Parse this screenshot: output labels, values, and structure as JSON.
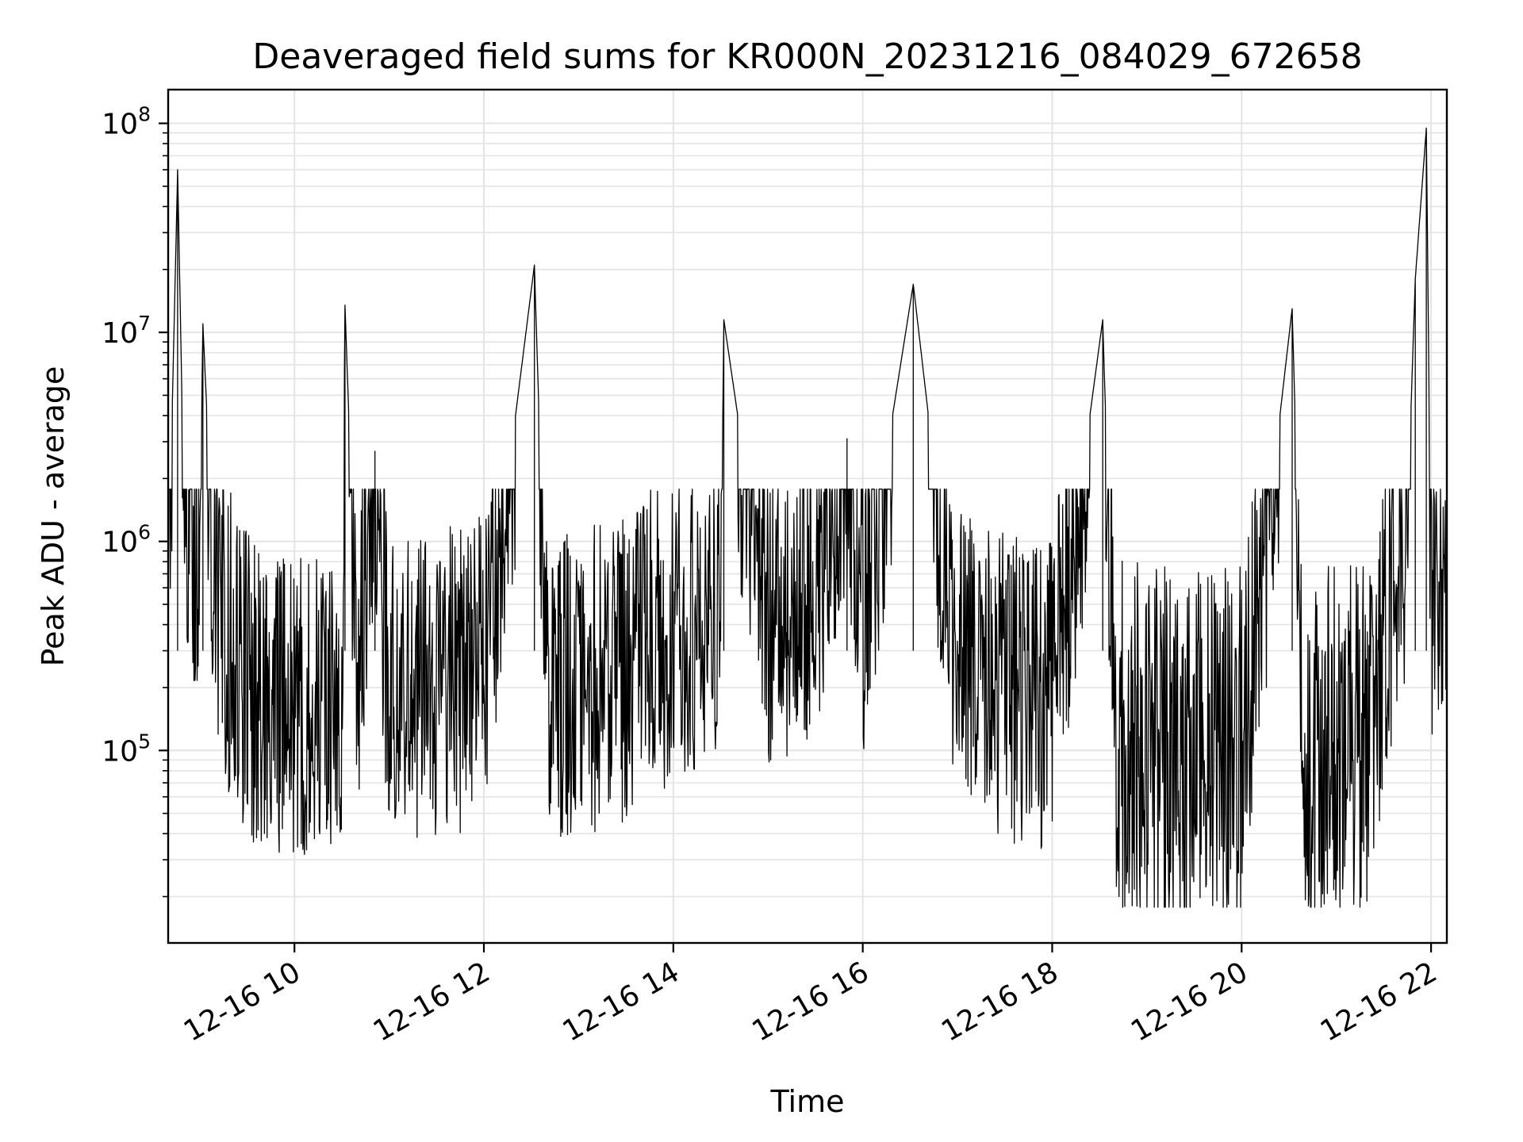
{
  "chart_data": {
    "type": "line",
    "title": "Deaveraged field sums for KR000N_20231216_084029_672658",
    "xlabel": "Time",
    "ylabel": "Peak ADU - average",
    "y_scale": "log",
    "grid": true,
    "line_color": "#000000",
    "grid_color": "#e4e4e4",
    "xlim": [
      "2023-12-16 08:40",
      "2023-12-16 22:10"
    ],
    "ylim": [
      12000,
      145000000
    ],
    "x_ticks": [
      "12-16 10",
      "12-16 12",
      "12-16 14",
      "12-16 16",
      "12-16 18",
      "12-16 20",
      "12-16 22"
    ],
    "x_tick_times": [
      "2023-12-16 10:00",
      "2023-12-16 12:00",
      "2023-12-16 14:00",
      "2023-12-16 16:00",
      "2023-12-16 18:00",
      "2023-12-16 20:00",
      "2023-12-16 22:00"
    ],
    "y_ticks": [
      {
        "value": 100000,
        "base": "10",
        "exp": "5"
      },
      {
        "value": 1000000,
        "base": "10",
        "exp": "6"
      },
      {
        "value": 10000000,
        "base": "10",
        "exp": "7"
      },
      {
        "value": 100000000,
        "base": "10",
        "exp": "8"
      }
    ],
    "series": [
      {
        "points": [
          [
            "2023-12-16 08:40",
            600000
          ],
          [
            "2023-12-16 08:46",
            60000000
          ],
          [
            "2023-12-16 08:50",
            1500000
          ],
          [
            "2023-12-16 09:00",
            1000000
          ],
          [
            "2023-12-16 09:02",
            11000000
          ],
          [
            "2023-12-16 09:10",
            500000
          ],
          [
            "2023-12-16 09:30",
            200000
          ],
          [
            "2023-12-16 10:00",
            170000
          ],
          [
            "2023-12-16 10:30",
            200000
          ],
          [
            "2023-12-16 10:32",
            13500000
          ],
          [
            "2023-12-16 10:40",
            250000
          ],
          [
            "2023-12-16 10:51",
            2700000
          ],
          [
            "2023-12-16 11:00",
            200000
          ],
          [
            "2023-12-16 11:30",
            200000
          ],
          [
            "2023-12-16 12:00",
            250000
          ],
          [
            "2023-12-16 12:32",
            21000000
          ],
          [
            "2023-12-16 12:40",
            230000
          ],
          [
            "2023-12-16 13:00",
            200000
          ],
          [
            "2023-12-16 13:30",
            250000
          ],
          [
            "2023-12-16 14:00",
            400000
          ],
          [
            "2023-12-16 14:30",
            500000
          ],
          [
            "2023-12-16 14:32",
            11500000
          ],
          [
            "2023-12-16 15:00",
            400000
          ],
          [
            "2023-12-16 15:30",
            700000
          ],
          [
            "2023-12-16 15:50",
            3100000
          ],
          [
            "2023-12-16 16:00",
            500000
          ],
          [
            "2023-12-16 16:32",
            17000000
          ],
          [
            "2023-12-16 17:00",
            250000
          ],
          [
            "2023-12-16 17:30",
            200000
          ],
          [
            "2023-12-16 18:00",
            180000
          ],
          [
            "2023-12-16 18:32",
            11500000
          ],
          [
            "2023-12-16 18:40",
            120000
          ],
          [
            "2023-12-16 19:00",
            100000
          ],
          [
            "2023-12-16 19:30",
            90000
          ],
          [
            "2023-12-16 20:00",
            100000
          ],
          [
            "2023-12-16 20:32",
            13000000
          ],
          [
            "2023-12-16 20:40",
            90000
          ],
          [
            "2023-12-16 21:00",
            100000
          ],
          [
            "2023-12-16 21:15",
            100000
          ],
          [
            "2023-12-16 21:30",
            300000
          ],
          [
            "2023-12-16 21:45",
            1300000
          ],
          [
            "2023-12-16 21:50",
            18000000
          ],
          [
            "2023-12-16 21:57",
            95000000
          ],
          [
            "2023-12-16 22:00",
            600000
          ],
          [
            "2023-12-16 22:10",
            800000
          ]
        ]
      }
    ]
  }
}
